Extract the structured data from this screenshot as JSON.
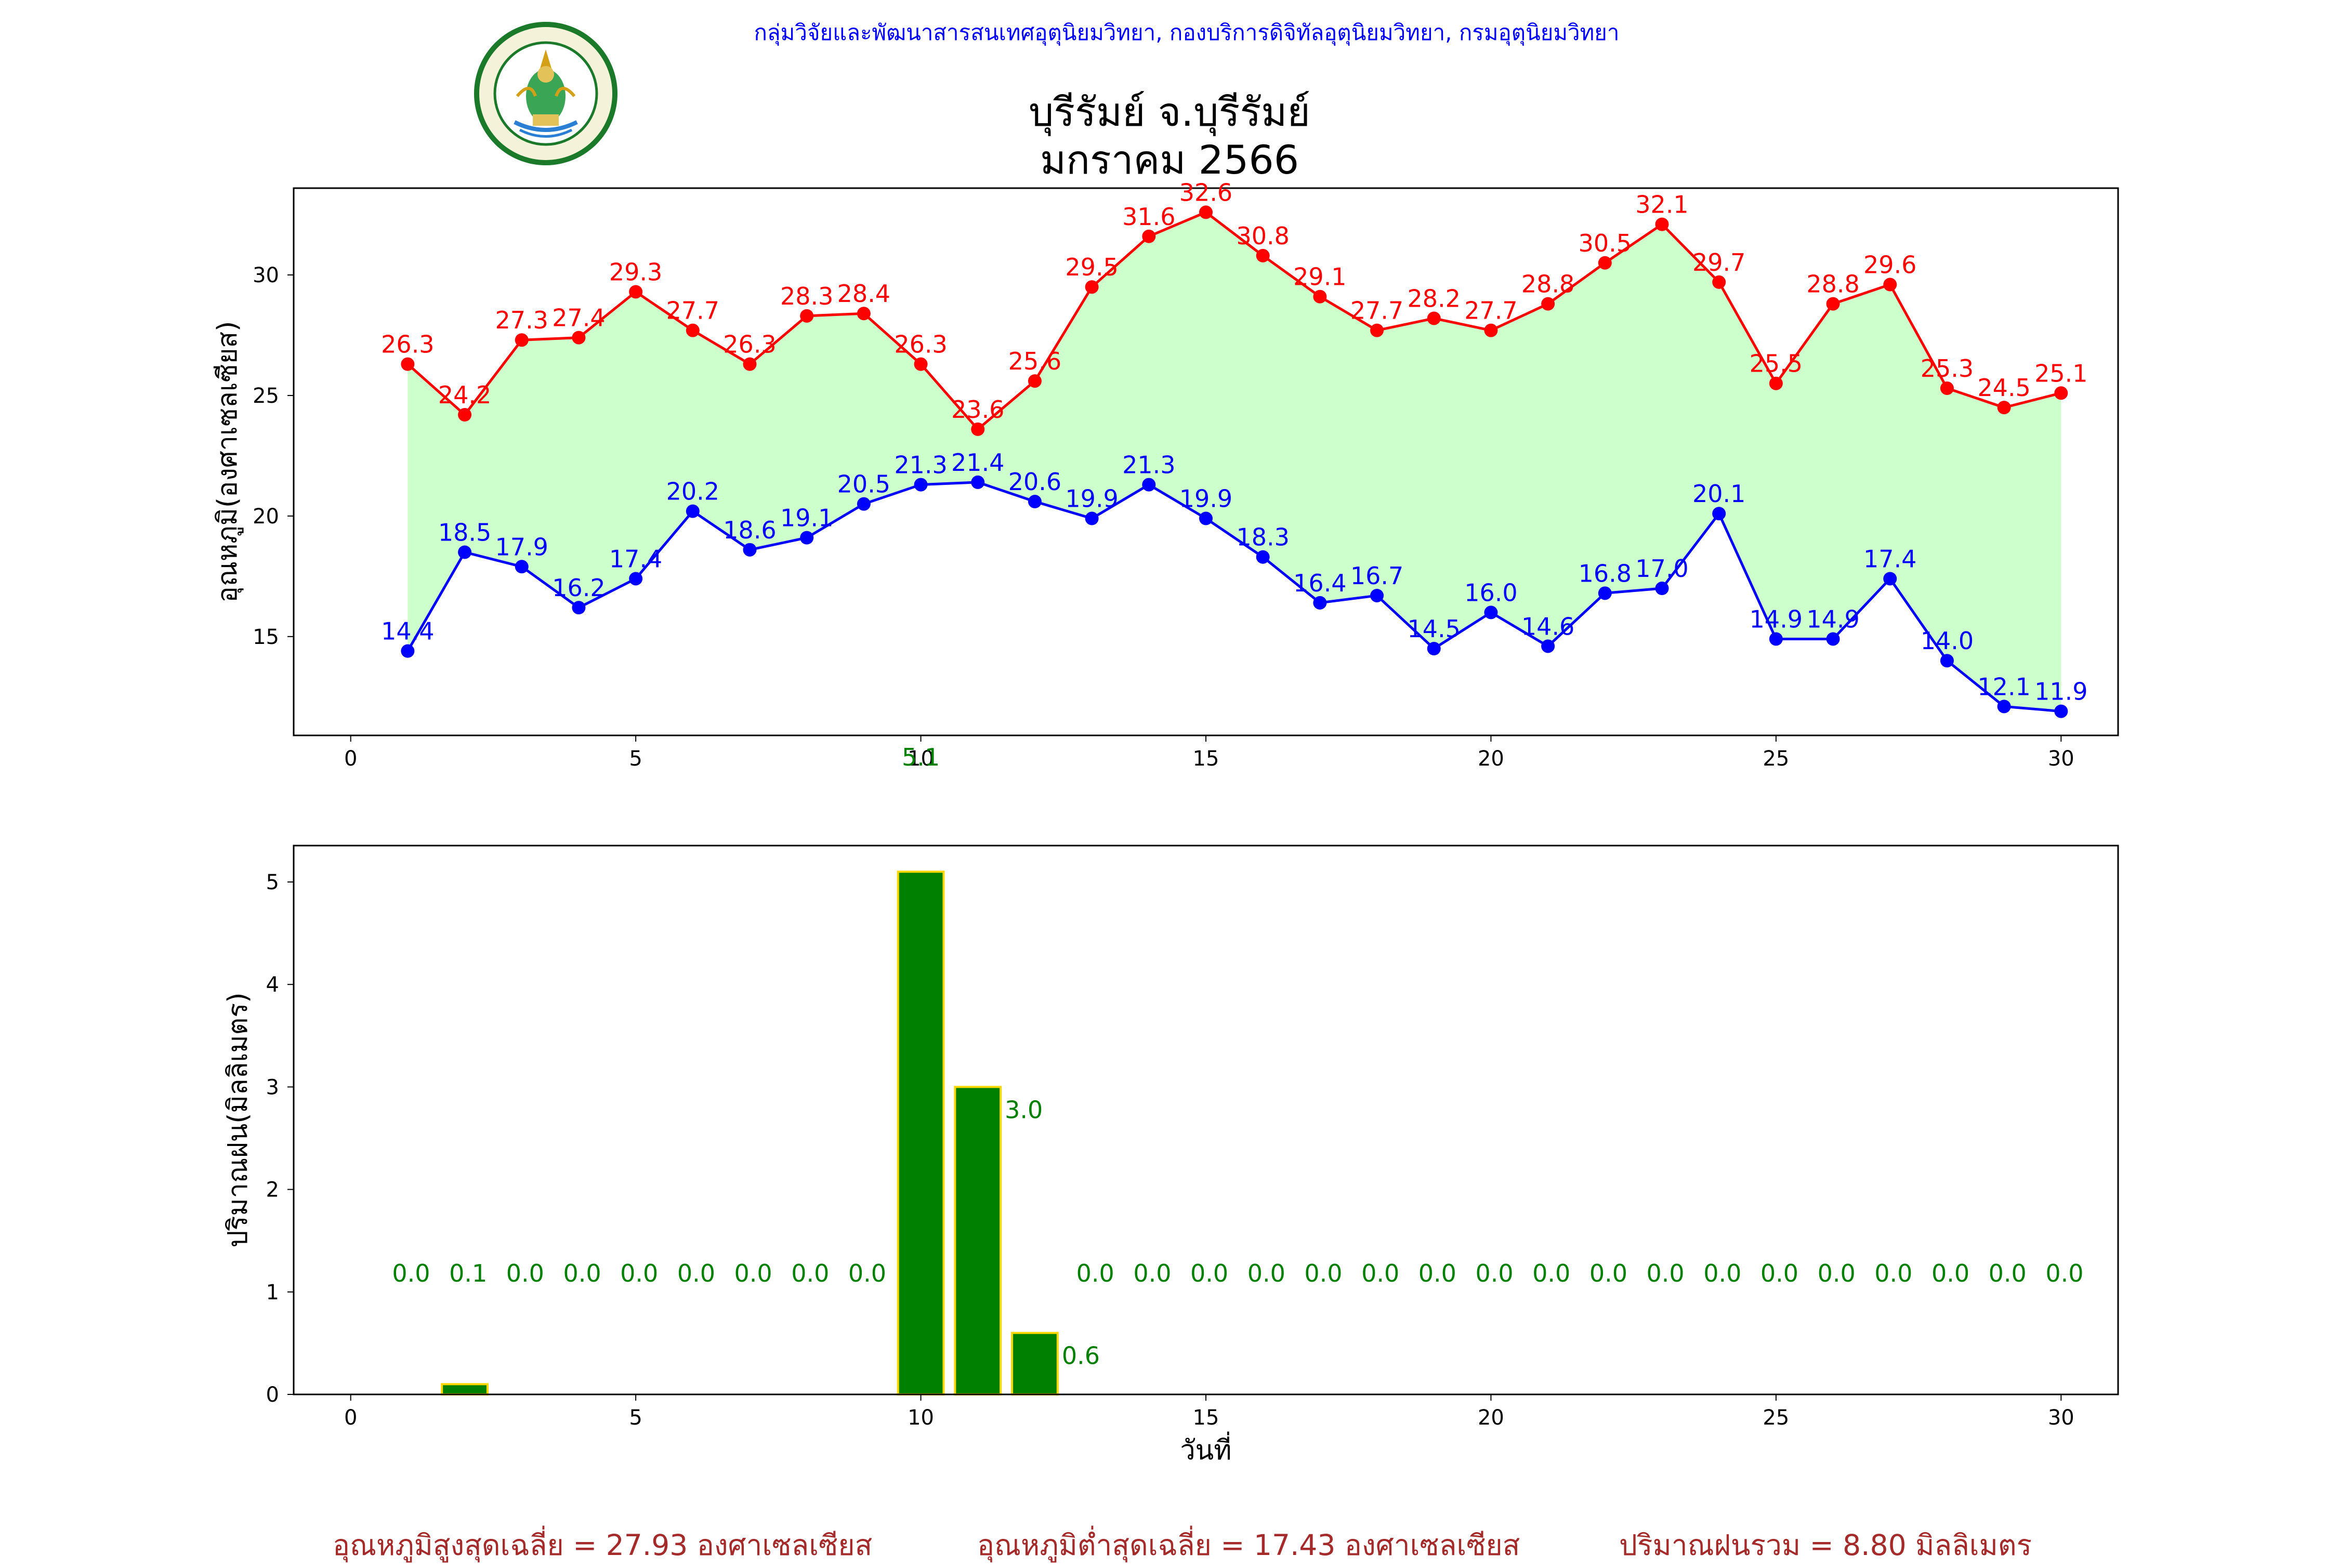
{
  "header": {
    "agency_line": "กลุ่มวิจัยและพัฒนาสารสนเทศอุตุนิยมวิทยา, กองบริการดิจิทัลอุตุนิยมวิทยา, กรมอุตุนิยมวิทยา",
    "title_line1": "บุรีรัมย์ จ.บุรีรัมย์",
    "title_line2": "มกราคม 2566",
    "logo_icon": "meteorological-department-seal",
    "logo_text_top": "กรมอุตุนิยมวิทยา",
    "logo_text_bottom": "METEOROLOGICAL DEPARTMENT"
  },
  "colors": {
    "max_temp": "#ff0000",
    "min_temp": "#0000ff",
    "fill": "#ccffcc",
    "rain_bar": "#008000",
    "rain_edge": "#ffd700",
    "footer_text": "#a52a2a",
    "header_text": "#0000ff"
  },
  "chart_data": [
    {
      "type": "line",
      "title": "",
      "xlabel": "",
      "ylabel": "อุณหภูมิ(องศาเซลเซียส)",
      "xlim": [
        -1,
        31
      ],
      "ylim": [
        10.9,
        33.6
      ],
      "xticks": [
        0,
        5,
        10,
        15,
        20,
        25,
        30
      ],
      "yticks": [
        15,
        20,
        25,
        30
      ],
      "grid": false,
      "fill_between": true,
      "x": [
        1,
        2,
        3,
        4,
        5,
        6,
        7,
        8,
        9,
        10,
        11,
        12,
        13,
        14,
        15,
        16,
        17,
        18,
        19,
        20,
        21,
        22,
        23,
        24,
        25,
        26,
        27,
        28,
        29,
        30
      ],
      "series": [
        {
          "key": "max",
          "values": [
            26.3,
            24.2,
            27.3,
            27.4,
            29.3,
            27.7,
            26.3,
            28.3,
            28.4,
            26.3,
            23.6,
            25.6,
            29.5,
            31.6,
            32.6,
            30.8,
            29.1,
            27.7,
            28.2,
            27.7,
            28.8,
            30.5,
            32.1,
            29.7,
            25.5,
            28.8,
            29.6,
            25.3,
            24.5,
            25.1
          ]
        },
        {
          "key": "min",
          "values": [
            14.4,
            18.5,
            17.9,
            16.2,
            17.4,
            20.2,
            18.6,
            19.1,
            20.5,
            21.3,
            21.4,
            20.6,
            19.9,
            21.3,
            19.9,
            18.3,
            16.4,
            16.7,
            14.5,
            16.0,
            14.6,
            16.8,
            17.0,
            20.1,
            14.9,
            14.9,
            17.4,
            14.0,
            12.1,
            11.9
          ]
        }
      ],
      "stray_label": {
        "x": 10,
        "text": "5.1"
      }
    },
    {
      "type": "bar",
      "title": "",
      "xlabel": "วันที่",
      "ylabel": "ปริมาณฝน(มิลลิเมตร)",
      "xlim": [
        -1,
        31
      ],
      "ylim": [
        0,
        5.355
      ],
      "xticks": [
        0,
        5,
        10,
        15,
        20,
        25,
        30
      ],
      "yticks": [
        0,
        1,
        2,
        3,
        4,
        5
      ],
      "grid": false,
      "x": [
        1,
        2,
        3,
        4,
        5,
        6,
        7,
        8,
        9,
        10,
        11,
        12,
        13,
        14,
        15,
        16,
        17,
        18,
        19,
        20,
        21,
        22,
        23,
        24,
        25,
        26,
        27,
        28,
        29,
        30
      ],
      "values": [
        0.0,
        0.1,
        0.0,
        0.0,
        0.0,
        0.0,
        0.0,
        0.0,
        0.0,
        5.1,
        3.0,
        0.6,
        0.0,
        0.0,
        0.0,
        0.0,
        0.0,
        0.0,
        0.0,
        0.0,
        0.0,
        0.0,
        0.0,
        0.0,
        0.0,
        0.0,
        0.0,
        0.0,
        0.0,
        0.0
      ],
      "labels": [
        "0.0",
        "0.1",
        "0.0",
        "0.0",
        "0.0",
        "0.0",
        "0.0",
        "0.0",
        "0.0",
        "",
        "3.0",
        "0.6",
        "0.0",
        "0.0",
        "0.0",
        "0.0",
        "0.0",
        "0.0",
        "0.0",
        "0.0",
        "0.0",
        "0.0",
        "0.0",
        "0.0",
        "0.0",
        "0.0",
        "0.0",
        "0.0",
        "0.0",
        "0.0"
      ]
    }
  ],
  "footer": {
    "avg_max": "อุณหภูมิสูงสุดเฉลี่ย = 27.93 องศาเซลเซียส",
    "avg_min": "อุณหภูมิต่ำสุดเฉลี่ย = 17.43 องศาเซลเซียส",
    "total_rain": "ปริมาณฝนรวม = 8.80 มิลลิเมตร"
  }
}
